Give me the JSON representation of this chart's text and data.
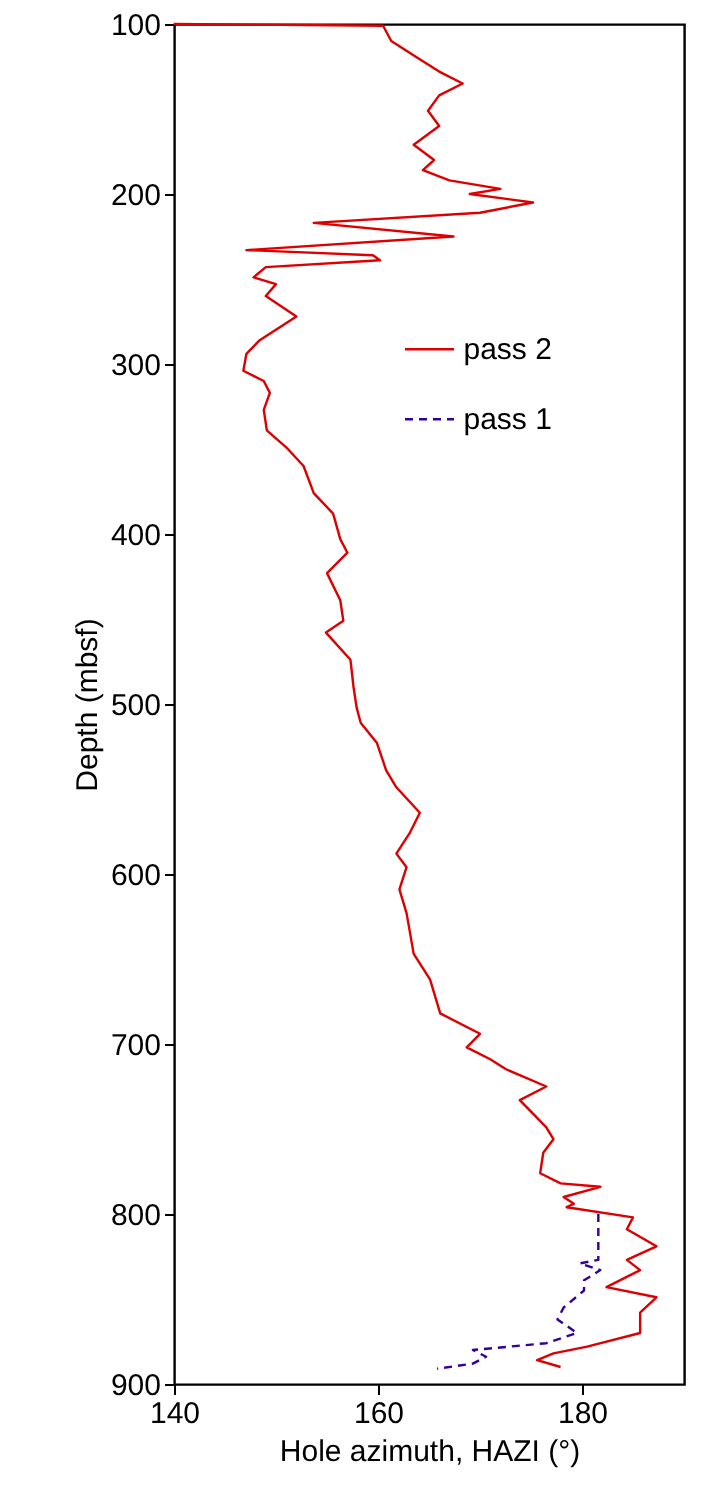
{
  "chart_data": {
    "type": "line",
    "xlabel": "Hole azimuth, HAZI (°)",
    "ylabel": "Depth (mbsf)",
    "xlim": [
      140,
      190
    ],
    "xticks": [
      140,
      160,
      180
    ],
    "ylim": [
      900,
      100
    ],
    "yticks": [
      100,
      200,
      300,
      400,
      500,
      600,
      700,
      800,
      900
    ],
    "grid": false,
    "legend": "top right",
    "series": [
      {
        "name": "pass 2",
        "color": "#dd0000",
        "line_style": "solid",
        "x": [
          140,
          160.5,
          161.3,
          163.9,
          166,
          168.3,
          166,
          164.9,
          166,
          163.5,
          165.5,
          164.4,
          167,
          172,
          169,
          175.2,
          170,
          153.7,
          167.4,
          147.1,
          159.5,
          160.2,
          149,
          147.8,
          150,
          149,
          152,
          148.4,
          147.1,
          146.8,
          148.8,
          149.4,
          148.8,
          149.1,
          151,
          152.7,
          153.7,
          155.6,
          156.3,
          157,
          155,
          156.3,
          156.6,
          154.9,
          157.3,
          157.6,
          157.9,
          158.3,
          159.9,
          160.8,
          161.8,
          164.1,
          163.1,
          161.8,
          162.8,
          162.1,
          162.8,
          163.5,
          165.1,
          166.1,
          170,
          168.7,
          171,
          172.6,
          176.5,
          173.9,
          175.2,
          176.5,
          177.2,
          176.2,
          175.9,
          177.9,
          181.8,
          178.2,
          179.2,
          178.5,
          185,
          184.4,
          187.3,
          184.4,
          185.7,
          182.4,
          187.3,
          185.7,
          185.7,
          180.5,
          177.2,
          175.6,
          177.9
        ],
        "values": [
          100,
          101,
          110,
          120,
          128,
          135,
          142,
          151,
          160,
          171,
          180,
          186,
          192,
          197,
          200,
          205,
          211,
          217,
          225,
          233,
          236,
          239,
          243,
          249,
          253,
          260,
          272,
          286,
          294,
          304,
          310,
          317,
          327,
          339,
          349,
          360,
          376,
          388,
          403,
          411,
          423,
          439,
          451,
          458,
          474,
          490,
          502,
          511,
          523,
          539,
          549,
          564,
          576,
          588,
          596,
          609,
          623,
          647,
          662,
          682,
          694,
          702,
          709,
          715,
          725,
          733,
          741,
          749,
          756,
          764,
          776,
          782,
          784,
          790,
          794,
          796,
          802,
          809,
          819,
          827,
          833,
          843,
          849,
          858,
          870,
          878,
          882,
          886,
          890
        ]
      },
      {
        "name": "pass 1",
        "color": "#330099",
        "line_style": "dashed",
        "x": [
          181.6,
          181.6,
          179.8,
          181.8,
          180.2,
          180.2,
          178.2,
          177.6,
          179.5,
          176.5,
          169.3,
          170.6,
          169.3,
          165.8
        ],
        "values": [
          800,
          827,
          829,
          833,
          839,
          845,
          855,
          862,
          870,
          876,
          880,
          884,
          888,
          891
        ]
      }
    ]
  }
}
